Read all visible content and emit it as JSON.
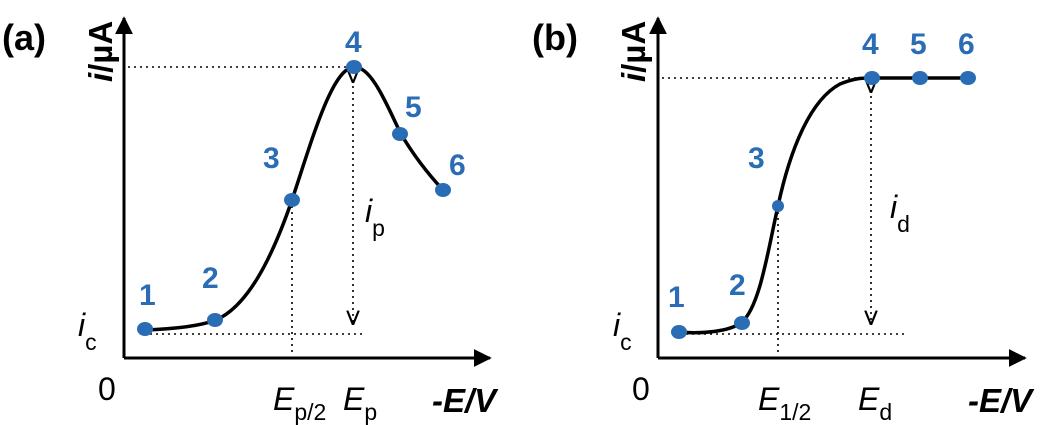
{
  "panel_a": {
    "label": "(a)",
    "y_label_var": "i",
    "y_label_unit": "/µA",
    "x_label": "-E/V",
    "origin": "0",
    "baseline_var": "i",
    "baseline_sub": "c",
    "peak_var": "i",
    "peak_sub": "p",
    "half_var": "E",
    "half_sub": "p/2",
    "pot_var": "E",
    "pot_sub": "p",
    "points": [
      "1",
      "2",
      "3",
      "4",
      "5",
      "6"
    ]
  },
  "panel_b": {
    "label": "(b)",
    "y_label_var": "i",
    "y_label_unit": "/µA",
    "x_label": "-E/V",
    "origin": "0",
    "baseline_var": "i",
    "baseline_sub": "c",
    "current_var": "i",
    "current_sub": "d",
    "half_var": "E",
    "half_sub": "1/2",
    "pot_var": "E",
    "pot_sub": "d",
    "points": [
      "1",
      "2",
      "3",
      "4",
      "5",
      "6"
    ]
  },
  "colors": {
    "points": "#2a6db5",
    "lines": "#000000"
  }
}
